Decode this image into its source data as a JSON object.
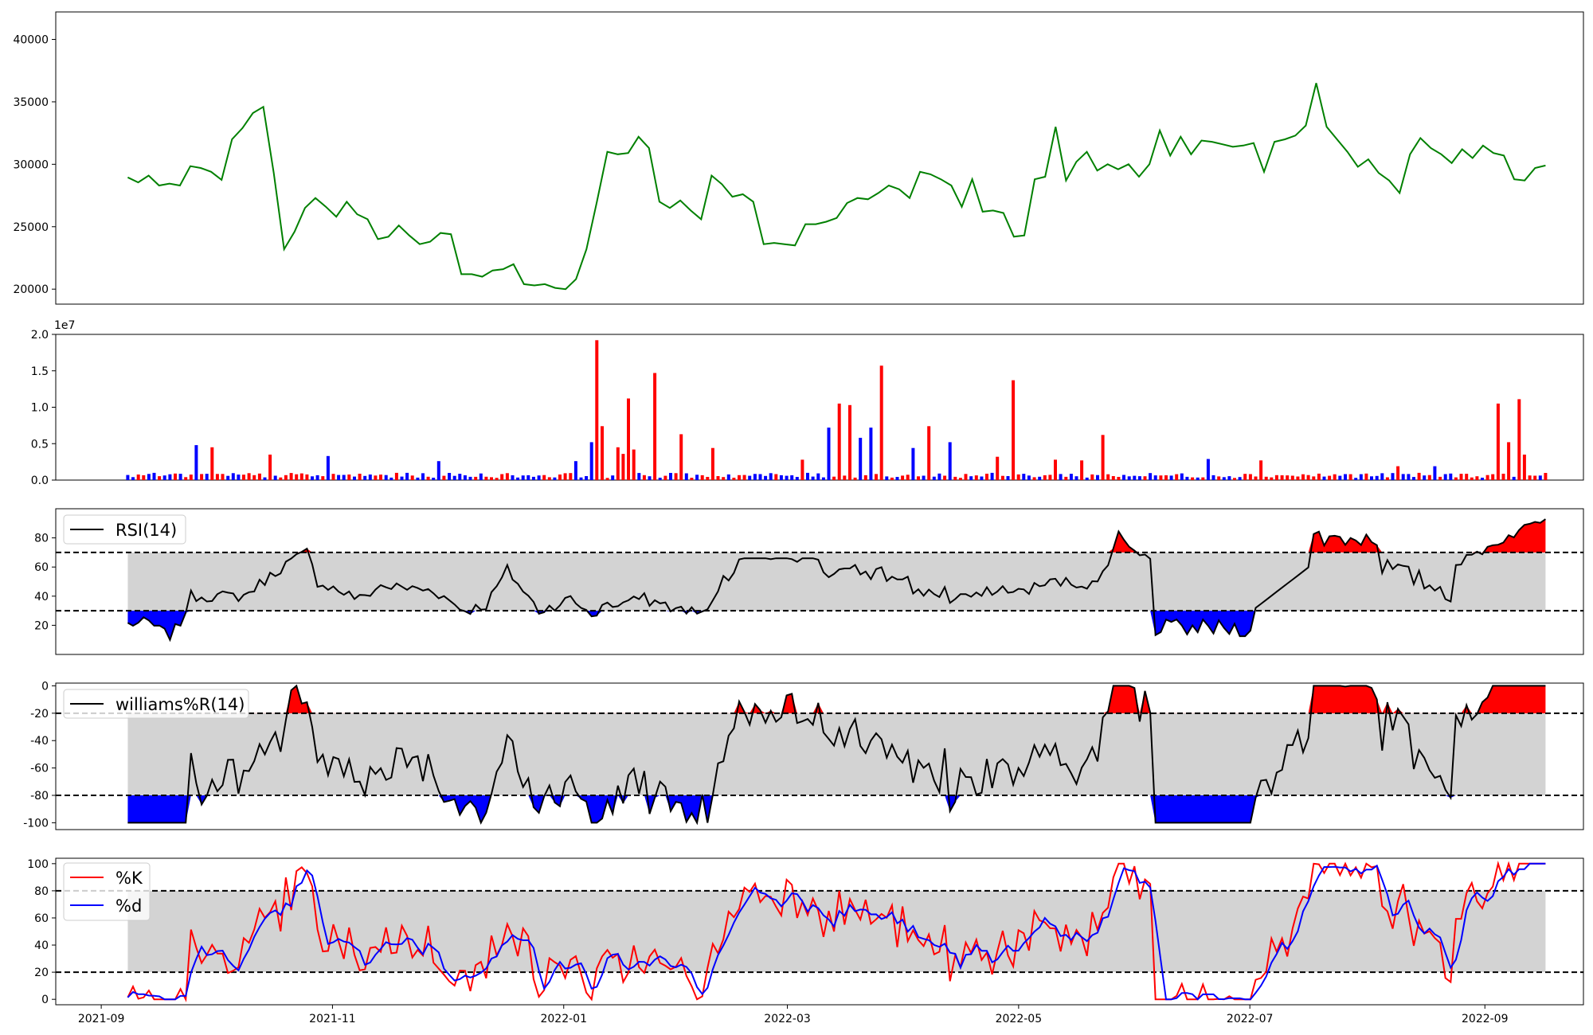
{
  "chart_data": [
    {
      "type": "line",
      "panel": "price",
      "series": [
        {
          "color": "#008000",
          "points": [
            [
              "2021-09-08",
              28950
            ],
            [
              "2021-09-10",
              28550
            ],
            [
              "2021-09-12",
              29100
            ],
            [
              "2021-09-17",
              28300
            ],
            [
              "2021-09-19",
              28450
            ],
            [
              "2021-09-21",
              28300
            ],
            [
              "2021-09-23",
              29850
            ],
            [
              "2021-09-26",
              29700
            ],
            [
              "2021-10-02",
              29400
            ],
            [
              "2021-10-04",
              28750
            ],
            [
              "2021-10-09",
              32000
            ],
            [
              "2021-10-11",
              32900
            ],
            [
              "2021-10-13",
              34100
            ],
            [
              "2021-10-15",
              34600
            ],
            [
              "2021-10-17",
              29300
            ],
            [
              "2021-10-24",
              23200
            ],
            [
              "2021-10-26",
              24600
            ],
            [
              "2021-10-28",
              26500
            ],
            [
              "2021-10-30",
              27300
            ],
            [
              "2021-11-05",
              26600
            ],
            [
              "2021-11-07",
              25800
            ],
            [
              "2021-11-09",
              27000
            ],
            [
              "2021-11-14",
              26000
            ],
            [
              "2021-11-16",
              25600
            ],
            [
              "2021-11-20",
              24000
            ],
            [
              "2021-11-25",
              24200
            ],
            [
              "2021-11-27",
              25100
            ],
            [
              "2021-11-29",
              24300
            ],
            [
              "2021-12-03",
              23600
            ],
            [
              "2021-12-07",
              23800
            ],
            [
              "2021-12-09",
              24500
            ],
            [
              "2021-12-12",
              24400
            ],
            [
              "2021-12-16",
              21200
            ],
            [
              "2021-12-19",
              21200
            ],
            [
              "2021-12-23",
              21000
            ],
            [
              "2021-12-26",
              21500
            ],
            [
              "2021-12-28",
              21600
            ],
            [
              "2022-01-02",
              22000
            ],
            [
              "2022-01-05",
              20400
            ],
            [
              "2022-01-10",
              20300
            ],
            [
              "2022-01-12",
              20400
            ],
            [
              "2022-01-14",
              20100
            ],
            [
              "2022-01-16",
              20000
            ],
            [
              "2022-01-19",
              20800
            ],
            [
              "2022-01-21",
              23200
            ],
            [
              "2022-01-24",
              27000
            ],
            [
              "2022-01-27",
              31000
            ],
            [
              "2022-01-29",
              30800
            ],
            [
              "2022-01-31",
              30900
            ],
            [
              "2022-02-02",
              32200
            ],
            [
              "2022-02-07",
              31300
            ],
            [
              "2022-02-09",
              27000
            ],
            [
              "2022-02-11",
              26500
            ],
            [
              "2022-02-13",
              27100
            ],
            [
              "2022-02-17",
              26300
            ],
            [
              "2022-02-19",
              25600
            ],
            [
              "2022-02-21",
              29100
            ],
            [
              "2022-02-23",
              28400
            ],
            [
              "2022-02-25",
              27400
            ],
            [
              "2022-03-03",
              27600
            ],
            [
              "2022-03-05",
              27000
            ],
            [
              "2022-03-09",
              23600
            ],
            [
              "2022-03-11",
              23700
            ],
            [
              "2022-03-13",
              23600
            ],
            [
              "2022-03-17",
              23500
            ],
            [
              "2022-03-19",
              25200
            ],
            [
              "2022-03-21",
              25200
            ],
            [
              "2022-03-23",
              25400
            ],
            [
              "2022-03-27",
              25700
            ],
            [
              "2022-03-29",
              26900
            ],
            [
              "2022-03-31",
              27300
            ],
            [
              "2022-04-02",
              27200
            ],
            [
              "2022-04-04",
              27700
            ],
            [
              "2022-04-09",
              28300
            ],
            [
              "2022-04-11",
              28000
            ],
            [
              "2022-04-13",
              27300
            ],
            [
              "2022-04-15",
              29400
            ],
            [
              "2022-04-17",
              29200
            ],
            [
              "2022-04-19",
              28800
            ],
            [
              "2022-04-21",
              28300
            ],
            [
              "2022-04-24",
              26600
            ],
            [
              "2022-04-26",
              28800
            ],
            [
              "2022-04-28",
              26200
            ],
            [
              "2022-04-30",
              26300
            ],
            [
              "2022-05-03",
              26100
            ],
            [
              "2022-05-05",
              24200
            ],
            [
              "2022-05-07",
              24300
            ],
            [
              "2022-05-09",
              28800
            ],
            [
              "2022-05-11",
              29000
            ],
            [
              "2022-05-18",
              33000
            ],
            [
              "2022-05-20",
              28700
            ],
            [
              "2022-05-24",
              30200
            ],
            [
              "2022-05-26",
              31000
            ],
            [
              "2022-05-28",
              29500
            ],
            [
              "2022-05-30",
              30000
            ],
            [
              "2022-06-01",
              29600
            ],
            [
              "2022-06-03",
              30000
            ],
            [
              "2022-06-05",
              29000
            ],
            [
              "2022-06-07",
              30000
            ],
            [
              "2022-06-10",
              32700
            ],
            [
              "2022-06-12",
              30700
            ],
            [
              "2022-06-14",
              32200
            ],
            [
              "2022-06-16",
              30800
            ],
            [
              "2022-06-18",
              31900
            ],
            [
              "2022-06-20",
              31800
            ],
            [
              "2022-06-22",
              31600
            ],
            [
              "2022-06-26",
              31400
            ],
            [
              "2022-06-28",
              31500
            ],
            [
              "2022-06-30",
              31700
            ],
            [
              "2022-07-02",
              29400
            ],
            [
              "2022-07-04",
              31800
            ],
            [
              "2022-07-09",
              32000
            ],
            [
              "2022-07-11",
              32300
            ],
            [
              "2022-07-13",
              33100
            ],
            [
              "2022-07-15",
              36500
            ],
            [
              "2022-07-17",
              33000
            ],
            [
              "2022-07-19",
              32000
            ],
            [
              "2022-07-21",
              31000
            ],
            [
              "2022-07-23",
              29800
            ],
            [
              "2022-07-26",
              30400
            ],
            [
              "2022-07-28",
              29300
            ],
            [
              "2022-07-30",
              28700
            ],
            [
              "2022-08-01",
              27700
            ],
            [
              "2022-08-05",
              30800
            ],
            [
              "2022-08-07",
              32100
            ],
            [
              "2022-08-09",
              31300
            ],
            [
              "2022-08-11",
              30800
            ],
            [
              "2022-08-14",
              30100
            ],
            [
              "2022-08-16",
              31200
            ],
            [
              "2022-08-18",
              30500
            ],
            [
              "2022-08-20",
              31500
            ],
            [
              "2022-08-22",
              30900
            ],
            [
              "2022-08-24",
              30700
            ],
            [
              "2022-08-28",
              28800
            ],
            [
              "2022-08-30",
              28700
            ],
            [
              "2022-09-01",
              29700
            ],
            [
              "2022-09-03",
              29900
            ]
          ]
        }
      ],
      "yticks": [
        20000,
        25000,
        30000,
        35000,
        40000
      ],
      "ylim": [
        18800,
        42200
      ],
      "grid": false
    },
    {
      "type": "bar",
      "panel": "volume",
      "offset_label": "1e7",
      "yticks": [
        0.0,
        0.5,
        1.0,
        1.5,
        2.0
      ],
      "ylim": [
        0,
        2.0
      ],
      "colors": [
        "#ff0000",
        "#0000ff"
      ],
      "grid": false
    },
    {
      "type": "line",
      "panel": "rsi",
      "series": [
        {
          "name": "RSI(14)",
          "color": "#000000"
        }
      ],
      "overbought": 70,
      "oversold": 30,
      "yticks": [
        20,
        40,
        60,
        80
      ],
      "ylim": [
        0,
        100
      ],
      "legend": "upper-left",
      "grid": false
    },
    {
      "type": "line",
      "panel": "williams",
      "series": [
        {
          "name": "williams%R(14)",
          "color": "#000000"
        }
      ],
      "overbought": -20,
      "oversold": -80,
      "yticks": [
        -100,
        -80,
        -60,
        -40,
        -20,
        0
      ],
      "ylim": [
        -105,
        2
      ],
      "legend": "upper-left",
      "grid": false
    },
    {
      "type": "line",
      "panel": "stochastic",
      "series": [
        {
          "name": "%K",
          "color": "#ff0000"
        },
        {
          "name": "%d",
          "color": "#0000ff"
        }
      ],
      "overbought": 80,
      "oversold": 20,
      "yticks": [
        0,
        20,
        40,
        60,
        80,
        100
      ],
      "ylim": [
        -4,
        104
      ],
      "xticks": [
        "2021-09",
        "2021-11",
        "2022-01",
        "2022-03",
        "2022-05",
        "2022-07",
        "2022-09"
      ],
      "legend": "upper-left",
      "grid": false
    }
  ]
}
